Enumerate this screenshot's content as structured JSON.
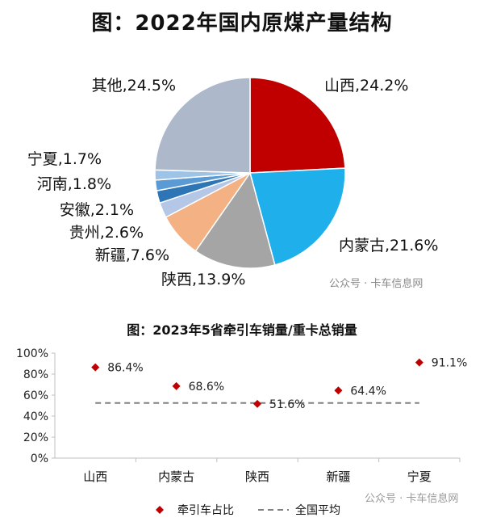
{
  "watermark": "公众号 · 卡车信息网",
  "chart_data": [
    {
      "type": "pie",
      "title": "图：2022年国内原煤产量结构",
      "slices": [
        {
          "name": "山西",
          "value": 24.2,
          "label": "山西,24.2%",
          "color": "#c00000"
        },
        {
          "name": "内蒙古",
          "value": 21.6,
          "label": "内蒙古,21.6%",
          "color": "#1fb0ec"
        },
        {
          "name": "陕西",
          "value": 13.9,
          "label": "陕西,13.9%",
          "color": "#a5a5a5"
        },
        {
          "name": "新疆",
          "value": 7.6,
          "label": "新疆,7.6%",
          "color": "#f4b183"
        },
        {
          "name": "贵州",
          "value": 2.6,
          "label": "贵州,2.6%",
          "color": "#b4c7e7"
        },
        {
          "name": "安徽",
          "value": 2.1,
          "label": "安徽,2.1%",
          "color": "#2e75b6"
        },
        {
          "name": "河南",
          "value": 1.8,
          "label": "河南,1.8%",
          "color": "#5b9bd5"
        },
        {
          "name": "宁夏",
          "value": 1.7,
          "label": "宁夏,1.7%",
          "color": "#9dc3e6"
        },
        {
          "name": "其他",
          "value": 24.5,
          "label": "其他,24.5%",
          "color": "#adb9ca"
        }
      ]
    },
    {
      "type": "scatter",
      "title": "图：2023年5省牵引车销量/重卡总销量",
      "categories": [
        "山西",
        "内蒙古",
        "陕西",
        "新疆",
        "宁夏"
      ],
      "series": [
        {
          "name": "牵引车占比",
          "values": [
            86.4,
            68.6,
            51.6,
            64.4,
            91.1
          ],
          "labels": [
            "86.4%",
            "68.6%",
            "51.6%",
            "64.4%",
            "91.1%"
          ],
          "color": "#c00000"
        },
        {
          "name": "全国平均",
          "value": 52.5,
          "color": "#808080",
          "style": "dashed"
        }
      ],
      "yticks": [
        "0%",
        "20%",
        "40%",
        "60%",
        "80%",
        "100%"
      ],
      "ylim": [
        0,
        100
      ]
    }
  ]
}
